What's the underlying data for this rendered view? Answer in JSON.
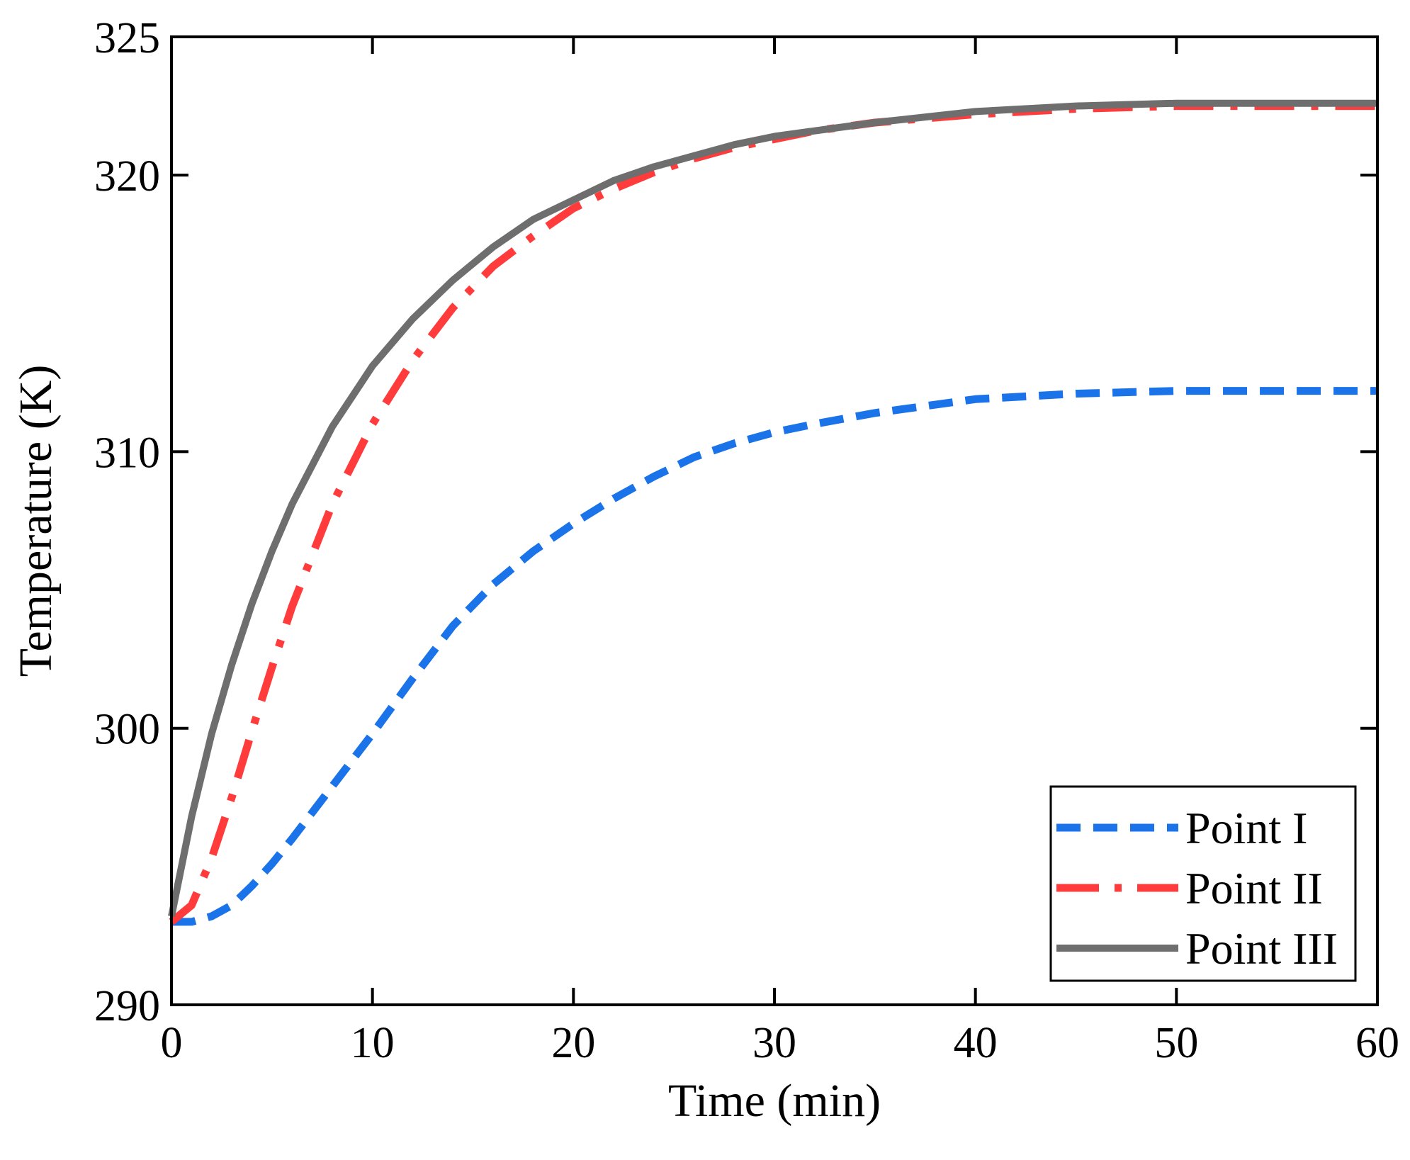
{
  "chart_data": {
    "type": "line",
    "title": "",
    "xlabel": "Time (min)",
    "ylabel": "Temperature (K)",
    "xlim": [
      0,
      60
    ],
    "ylim": [
      290,
      325
    ],
    "xticks": [
      0,
      10,
      20,
      30,
      40,
      50,
      60
    ],
    "yticks": [
      290,
      300,
      310,
      320,
      325
    ],
    "grid": false,
    "legend_position": "bottom-right",
    "x": [
      0,
      1,
      2,
      3,
      4,
      5,
      6,
      8,
      10,
      12,
      14,
      16,
      18,
      20,
      22,
      24,
      26,
      28,
      30,
      32,
      35,
      40,
      45,
      50,
      55,
      60
    ],
    "series": [
      {
        "name": "Point I",
        "color": "#1a73e8",
        "style": "dashed",
        "values": [
          293.0,
          293.0,
          293.2,
          293.6,
          294.3,
          295.1,
          296.0,
          297.9,
          299.8,
          301.8,
          303.7,
          305.2,
          306.4,
          307.4,
          308.3,
          309.1,
          309.8,
          310.3,
          310.7,
          311.0,
          311.4,
          311.9,
          312.1,
          312.2,
          312.2,
          312.2
        ]
      },
      {
        "name": "Point II",
        "color": "#ff3b3b",
        "style": "dashdot",
        "values": [
          293.0,
          293.6,
          295.3,
          297.5,
          299.9,
          302.2,
          304.4,
          308.1,
          311.0,
          313.3,
          315.2,
          316.7,
          317.8,
          318.8,
          319.5,
          320.1,
          320.6,
          321.0,
          321.3,
          321.6,
          321.9,
          322.2,
          322.4,
          322.5,
          322.5,
          322.5
        ]
      },
      {
        "name": "Point III",
        "color": "#6e6e6e",
        "style": "solid",
        "values": [
          293.2,
          296.8,
          299.8,
          302.3,
          304.5,
          306.4,
          308.1,
          310.9,
          313.1,
          314.8,
          316.2,
          317.4,
          318.4,
          319.1,
          319.8,
          320.3,
          320.7,
          321.1,
          321.4,
          321.6,
          321.9,
          322.3,
          322.5,
          322.6,
          322.6,
          322.6
        ]
      }
    ]
  }
}
